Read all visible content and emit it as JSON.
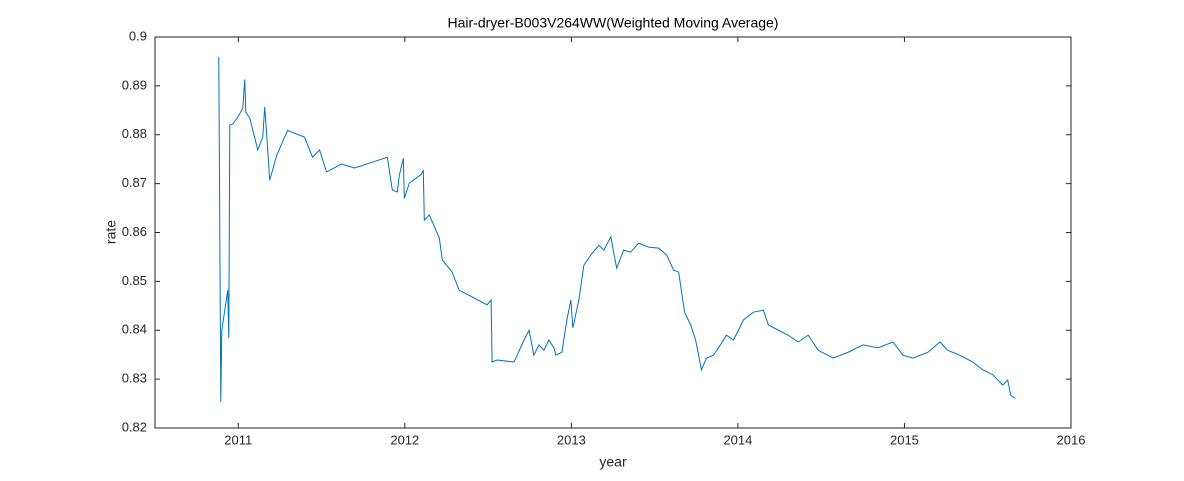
{
  "chart_data": {
    "type": "line",
    "title": "Hair-dryer-B003V264WW(Weighted Moving Average)",
    "x_label": "year",
    "y_label": "rate",
    "color": "#0072bd",
    "xlim": [
      2010.5,
      2016
    ],
    "xticks": [
      2011,
      2012,
      2013,
      2014,
      2015,
      2016
    ],
    "ylim": [
      0.82,
      0.9
    ],
    "yticks": [
      0.82,
      0.83,
      0.84,
      0.85,
      0.86,
      0.87,
      0.88,
      0.89,
      0.9
    ],
    "x": [
      2010.883,
      2010.895,
      2010.901,
      2010.937,
      2010.943,
      2010.949,
      2010.967,
      2010.997,
      2011.027,
      2011.039,
      2011.045,
      2011.069,
      2011.117,
      2011.147,
      2011.159,
      2011.189,
      2011.231,
      2011.296,
      2011.398,
      2011.446,
      2011.488,
      2011.53,
      2011.62,
      2011.698,
      2011.895,
      2011.925,
      2011.955,
      2011.967,
      2011.991,
      2011.997,
      2012.027,
      2012.099,
      2012.111,
      2012.117,
      2012.147,
      2012.207,
      2012.225,
      2012.284,
      2012.326,
      2012.494,
      2012.518,
      2012.524,
      2012.554,
      2012.656,
      2012.716,
      2012.746,
      2012.775,
      2012.805,
      2012.835,
      2012.865,
      2012.895,
      2012.907,
      2012.943,
      2012.973,
      2012.997,
      2013.009,
      2013.045,
      2013.075,
      2013.117,
      2013.165,
      2013.195,
      2013.237,
      2013.272,
      2013.314,
      2013.356,
      2013.404,
      2013.464,
      2013.524,
      2013.572,
      2013.614,
      2013.644,
      2013.68,
      2013.716,
      2013.746,
      2013.781,
      2013.811,
      2013.853,
      2013.895,
      2013.931,
      2013.973,
      2014.003,
      2014.033,
      2014.093,
      2014.153,
      2014.183,
      2014.243,
      2014.302,
      2014.362,
      2014.422,
      2014.482,
      2014.572,
      2014.662,
      2014.751,
      2014.841,
      2014.931,
      2014.991,
      2015.051,
      2015.141,
      2015.213,
      2015.26,
      2015.332,
      2015.41,
      2015.47,
      2015.53,
      2015.59,
      2015.62,
      2015.638,
      2015.662
    ],
    "values": [
      0.8959,
      0.8253,
      0.84,
      0.8482,
      0.8384,
      0.882,
      0.8822,
      0.8836,
      0.8854,
      0.8913,
      0.8846,
      0.8834,
      0.8769,
      0.8795,
      0.8857,
      0.8707,
      0.8758,
      0.8809,
      0.8795,
      0.8754,
      0.8769,
      0.8724,
      0.874,
      0.8732,
      0.8754,
      0.8687,
      0.8683,
      0.8717,
      0.8752,
      0.867,
      0.8701,
      0.8719,
      0.8728,
      0.8625,
      0.8636,
      0.8589,
      0.8544,
      0.8519,
      0.8482,
      0.8452,
      0.8462,
      0.8335,
      0.8339,
      0.8335,
      0.838,
      0.84,
      0.8349,
      0.837,
      0.8359,
      0.838,
      0.8364,
      0.8349,
      0.8355,
      0.8421,
      0.8462,
      0.8405,
      0.8462,
      0.8533,
      0.8554,
      0.8574,
      0.8564,
      0.8591,
      0.8527,
      0.8564,
      0.856,
      0.8578,
      0.857,
      0.8568,
      0.8554,
      0.8523,
      0.8519,
      0.8437,
      0.8411,
      0.838,
      0.8319,
      0.8343,
      0.8349,
      0.837,
      0.839,
      0.838,
      0.84,
      0.8421,
      0.8437,
      0.8441,
      0.8411,
      0.84,
      0.839,
      0.8376,
      0.839,
      0.8359,
      0.8343,
      0.8355,
      0.837,
      0.8364,
      0.8376,
      0.8349,
      0.8343,
      0.8355,
      0.8376,
      0.8359,
      0.8349,
      0.8335,
      0.8319,
      0.8309,
      0.8288,
      0.8298,
      0.8267,
      0.8261
    ]
  }
}
